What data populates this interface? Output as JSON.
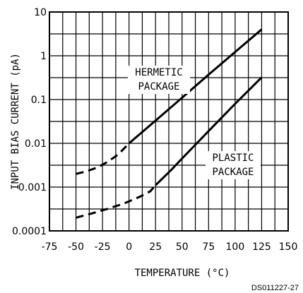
{
  "chart_data": {
    "type": "line",
    "title": "",
    "xlabel": "TEMPERATURE (°C)",
    "ylabel": "INPUT BIAS CURRENT (pA)",
    "x_ticks": [
      -75,
      -50,
      -25,
      0,
      25,
      50,
      75,
      100,
      125,
      150
    ],
    "x_tick_labels": [
      "-75",
      "-50",
      "-25",
      "0",
      "25",
      "50",
      "75",
      "100",
      "125",
      "150"
    ],
    "xlim": [
      -75,
      150
    ],
    "ylim": [
      0.0001,
      10
    ],
    "yscale": "log",
    "y_ticks": [
      0.0001,
      0.001,
      0.01,
      0.1,
      1,
      10
    ],
    "y_tick_labels": [
      "0.0001",
      "0.001",
      "0.01",
      "0.1",
      "1",
      "10"
    ],
    "grid": true,
    "series": [
      {
        "name": "HERMETIC PACKAGE",
        "dashed_points": [
          [
            -50,
            0.002
          ],
          [
            -40,
            0.0023
          ],
          [
            -30,
            0.0028
          ],
          [
            -20,
            0.0038
          ],
          [
            -10,
            0.0056
          ],
          [
            0,
            0.01
          ]
        ],
        "solid_points": [
          [
            0,
            0.01
          ],
          [
            25,
            0.033
          ],
          [
            50,
            0.11
          ],
          [
            75,
            0.37
          ],
          [
            100,
            1.22
          ],
          [
            125,
            4.0
          ]
        ]
      },
      {
        "name": "PLASTIC PACKAGE",
        "dashed_points": [
          [
            -50,
            0.0002
          ],
          [
            -35,
            0.00025
          ],
          [
            -20,
            0.00032
          ],
          [
            -5,
            0.00042
          ],
          [
            10,
            0.0006
          ],
          [
            20,
            0.0008
          ],
          [
            25,
            0.0011
          ]
        ],
        "solid_points": [
          [
            25,
            0.0011
          ],
          [
            40,
            0.0025
          ],
          [
            50,
            0.0045
          ],
          [
            75,
            0.019
          ],
          [
            100,
            0.08
          ],
          [
            125,
            0.32
          ]
        ]
      }
    ],
    "annotations": [
      {
        "lines": [
          "HERMETIC",
          "PACKAGE"
        ],
        "series": 0
      },
      {
        "lines": [
          "PLASTIC",
          "PACKAGE"
        ],
        "series": 1
      }
    ],
    "footnote": "DS011227-27"
  }
}
